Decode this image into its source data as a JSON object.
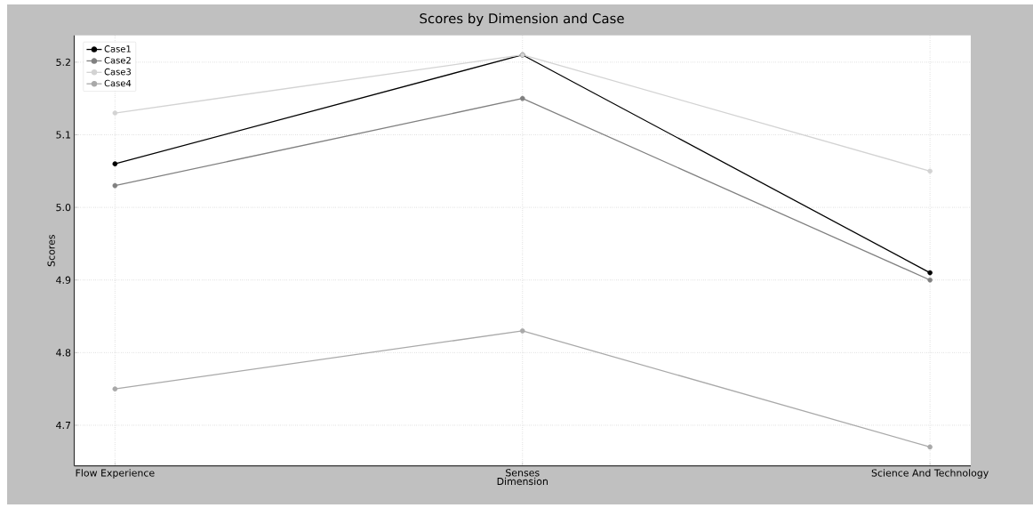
{
  "chart_data": {
    "type": "line",
    "title": "Scores by Dimension and Case",
    "xlabel": "Dimension",
    "ylabel": "Scores",
    "categories": [
      "Flow Experience",
      "Senses",
      "Science And Technology"
    ],
    "series": [
      {
        "name": "Case1",
        "color": "#000000",
        "values": [
          5.06,
          5.21,
          4.91
        ]
      },
      {
        "name": "Case2",
        "color": "#808080",
        "values": [
          5.03,
          5.15,
          4.9
        ]
      },
      {
        "name": "Case3",
        "color": "#d3d3d3",
        "values": [
          5.13,
          5.21,
          5.05
        ]
      },
      {
        "name": "Case4",
        "color": "#a9a9a9",
        "values": [
          4.75,
          4.83,
          4.67
        ]
      }
    ],
    "ylim": [
      4.644,
      5.237
    ],
    "yticks": [
      4.7,
      4.8,
      4.9,
      {
        "value": 5.0,
        "label": "5.0"
      },
      5.1,
      5.2
    ],
    "grid": true,
    "legend": "top left",
    "marker": "circle",
    "line_style": "solid"
  }
}
